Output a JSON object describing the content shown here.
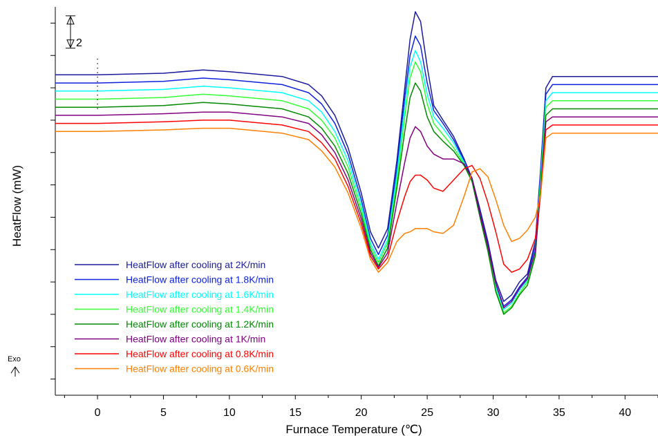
{
  "chart_data": {
    "type": "line",
    "title": "",
    "xlabel": "Furnace Temperature (℃)",
    "ylabel": "HeatFlow (mW)",
    "xlim": [
      -3.2,
      42.5
    ],
    "ylim": [
      -11,
      13
    ],
    "x_ticks": [
      0,
      5,
      10,
      15,
      20,
      25,
      30,
      35,
      40
    ],
    "y_tick_labels_shown": false,
    "grid": false,
    "legend_position": "bottom-left",
    "scale_bar": {
      "label": "2",
      "value": 2
    },
    "exo_label": "Exo",
    "x": [
      -3.2,
      0,
      5,
      8,
      10,
      14,
      16,
      17,
      18,
      19,
      20,
      20.7,
      21.3,
      22,
      22.7,
      23.3,
      23.7,
      24.1,
      24.5,
      25,
      25.5,
      26.2,
      27,
      27.8,
      28.4,
      29,
      29.6,
      30.2,
      30.8,
      31.4,
      32,
      32.6,
      33.2,
      33.6,
      34,
      34.5,
      35,
      42.5
    ],
    "series": [
      {
        "name": "HeatFlow after cooling at 2K/min",
        "color": "#1a1a9c",
        "values": [
          8.8,
          8.8,
          8.9,
          9.1,
          9.0,
          8.7,
          8.2,
          7.5,
          6.3,
          4.3,
          1.5,
          -0.9,
          -1.9,
          -0.7,
          3.5,
          8.0,
          11.0,
          12.7,
          12.1,
          9.3,
          6.9,
          6.0,
          5.0,
          3.6,
          2.4,
          0.5,
          -1.5,
          -3.9,
          -5.2,
          -4.8,
          -4.0,
          -3.5,
          -1.5,
          3.0,
          8.0,
          8.7,
          8.7,
          8.7
        ]
      },
      {
        "name": "HeatFlow after cooling at 1.8K/min",
        "color": "#0d20e0",
        "values": [
          8.3,
          8.3,
          8.4,
          8.6,
          8.5,
          8.2,
          7.7,
          7.0,
          5.8,
          3.9,
          1.1,
          -1.3,
          -2.3,
          -1.1,
          3.0,
          7.4,
          10.0,
          11.2,
          10.6,
          8.3,
          6.6,
          5.8,
          4.8,
          3.5,
          2.3,
          0.3,
          -1.7,
          -4.1,
          -5.5,
          -5.1,
          -4.3,
          -3.7,
          -1.8,
          2.7,
          7.6,
          8.2,
          8.2,
          8.2
        ]
      },
      {
        "name": "HeatFlow after cooling at 1.6K/min",
        "color": "#00ffff",
        "values": [
          7.8,
          7.8,
          7.9,
          8.1,
          8.0,
          7.7,
          7.2,
          6.5,
          5.3,
          3.5,
          0.8,
          -1.6,
          -2.6,
          -1.4,
          2.6,
          6.8,
          9.3,
          10.3,
          9.6,
          7.6,
          6.2,
          5.5,
          4.6,
          3.4,
          2.2,
          0.2,
          -1.9,
          -4.3,
          -5.7,
          -5.3,
          -4.5,
          -3.9,
          -2.0,
          2.4,
          7.2,
          7.7,
          7.7,
          7.7
        ]
      },
      {
        "name": "HeatFlow after cooling at 1.4K/min",
        "color": "#33ff33",
        "values": [
          7.3,
          7.3,
          7.4,
          7.6,
          7.5,
          7.2,
          6.7,
          6.0,
          4.9,
          3.1,
          0.5,
          -1.8,
          -2.8,
          -1.6,
          2.2,
          6.2,
          8.6,
          9.6,
          9.0,
          7.0,
          5.8,
          5.1,
          4.3,
          3.3,
          2.2,
          0.1,
          -2.0,
          -4.5,
          -5.9,
          -5.5,
          -4.7,
          -4.0,
          -2.2,
          2.1,
          6.8,
          7.2,
          7.2,
          7.2
        ]
      },
      {
        "name": "HeatFlow after cooling at 1.2K/min",
        "color": "#008800",
        "values": [
          6.8,
          6.8,
          6.9,
          7.1,
          7.0,
          6.7,
          6.2,
          5.5,
          4.4,
          2.7,
          0.2,
          -2.0,
          -3.0,
          -1.9,
          1.8,
          5.3,
          7.4,
          8.3,
          7.8,
          6.2,
          5.3,
          4.7,
          4.1,
          3.2,
          2.2,
          0.0,
          -2.1,
          -4.6,
          -6.0,
          -5.6,
          -4.8,
          -4.2,
          -2.4,
          1.8,
          6.3,
          6.7,
          6.7,
          6.7
        ]
      },
      {
        "name": "HeatFlow after cooling at 1K/min",
        "color": "#800080",
        "values": [
          6.3,
          6.3,
          6.4,
          6.5,
          6.5,
          6.2,
          5.8,
          5.1,
          4.0,
          2.3,
          -0.1,
          -2.2,
          -3.1,
          -2.2,
          0.9,
          3.4,
          4.9,
          5.6,
          5.3,
          4.4,
          3.9,
          3.6,
          3.6,
          3.3,
          2.4,
          0.2,
          -1.8,
          -4.1,
          -5.6,
          -5.2,
          -4.4,
          -3.8,
          -2.1,
          1.6,
          5.9,
          6.2,
          6.2,
          6.2
        ]
      },
      {
        "name": "HeatFlow after cooling at 0.8K/min",
        "color": "#ff0000",
        "values": [
          5.8,
          5.8,
          5.9,
          6.0,
          6.0,
          5.7,
          5.3,
          4.6,
          3.6,
          1.9,
          -0.4,
          -2.4,
          -3.2,
          -2.5,
          -0.3,
          1.3,
          2.2,
          2.6,
          2.6,
          2.3,
          1.8,
          1.6,
          2.3,
          3.0,
          3.2,
          2.4,
          0.9,
          -0.9,
          -2.9,
          -3.4,
          -3.2,
          -2.6,
          -1.3,
          1.4,
          5.4,
          5.7,
          5.7,
          5.7
        ]
      },
      {
        "name": "HeatFlow after cooling at 0.6K/min",
        "color": "#ff8000",
        "values": [
          5.3,
          5.3,
          5.4,
          5.5,
          5.5,
          5.2,
          4.8,
          4.1,
          3.1,
          1.5,
          -0.7,
          -2.6,
          -3.4,
          -2.8,
          -1.5,
          -1.0,
          -0.9,
          -0.7,
          -0.7,
          -0.7,
          -0.9,
          -1.0,
          -0.5,
          1.3,
          2.8,
          3.0,
          2.5,
          1.1,
          -0.5,
          -1.5,
          -1.3,
          -0.8,
          0.0,
          1.4,
          4.9,
          5.2,
          5.2,
          5.2
        ]
      }
    ]
  }
}
